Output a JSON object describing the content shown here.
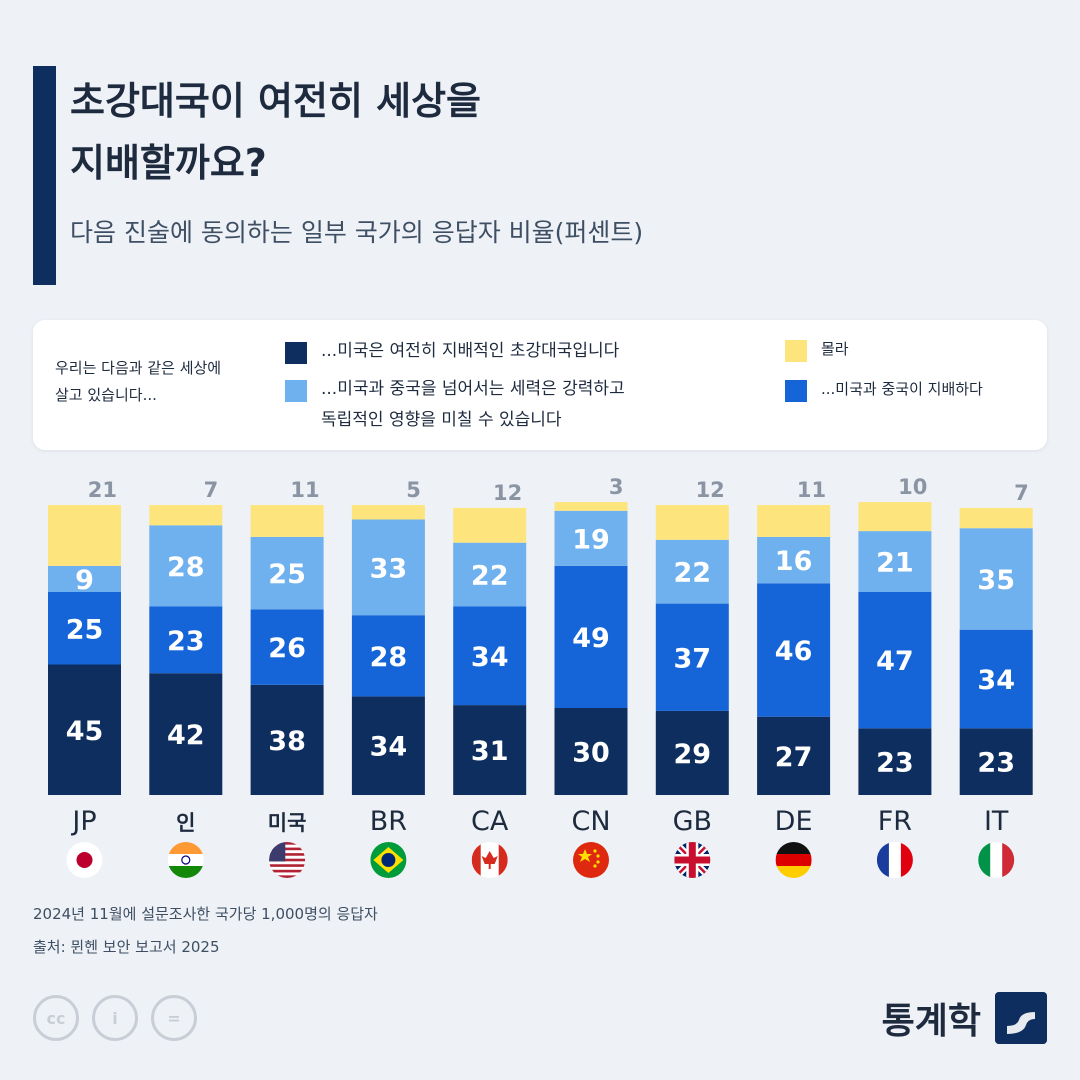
{
  "header": {
    "title_line1": "초강대국이 여전히 세상을",
    "title_line2": "지배할까요?",
    "subtitle": "다음 진술에 동의하는 일부 국가의 응답자 비율(퍼센트)"
  },
  "legend": {
    "intro_line1": "우리는 다음과 같은 세상에",
    "intro_line2": "살고 있습니다...",
    "items": [
      {
        "label": "...미국은 여전히 지배적인 초강대국입니다",
        "color": "#0e2e5f"
      },
      {
        "label": "...미국과 중국을 넘어서는 세력은 강력하고\n독립적인 영향을 미칠 수 있습니다",
        "color": "#6fb0ee"
      },
      {
        "label": "몰라",
        "color": "#fde47c"
      },
      {
        "label": "...미국과 중국이 지배하다",
        "color": "#1565d8"
      }
    ]
  },
  "chart_data": {
    "type": "bar",
    "stacked": true,
    "categories": [
      "JP",
      "인",
      "미국",
      "BR",
      "CA",
      "CN",
      "GB",
      "DE",
      "FR",
      "IT"
    ],
    "flags": [
      "japan",
      "india",
      "usa",
      "brazil",
      "canada",
      "china",
      "uk",
      "germany",
      "france",
      "italy"
    ],
    "series": [
      {
        "name": "...미국은 여전히 지배적인 초강대국입니다",
        "color": "#0e2e5f",
        "values": [
          45,
          42,
          38,
          34,
          31,
          30,
          29,
          27,
          23,
          23
        ]
      },
      {
        "name": "...미국과 중국이 지배하다",
        "color": "#1565d8",
        "values": [
          25,
          23,
          26,
          28,
          34,
          49,
          37,
          46,
          47,
          34
        ]
      },
      {
        "name": "...미국과 중국을 넘어서는 세력은 강력하고 독립적인 영향을 미칠 수 있습니다",
        "color": "#6fb0ee",
        "values": [
          9,
          28,
          25,
          33,
          22,
          19,
          22,
          16,
          21,
          35
        ]
      },
      {
        "name": "몰라",
        "color": "#fde47c",
        "values": [
          21,
          7,
          11,
          5,
          12,
          3,
          12,
          11,
          10,
          7
        ]
      }
    ],
    "ylim": [
      0,
      100
    ]
  },
  "footer": {
    "note": "2024년 11월에 설문조사한 국가당 1,000명의 응답자",
    "source": "출처: 뮌헨 보안 보고서 2025",
    "cc_labels": [
      "cc",
      "i",
      "="
    ],
    "brand": "통계학"
  }
}
